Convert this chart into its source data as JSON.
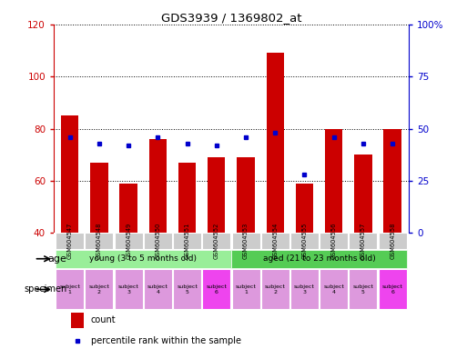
{
  "title": "GDS3939 / 1369802_at",
  "samples": [
    "GSM604547",
    "GSM604548",
    "GSM604549",
    "GSM604550",
    "GSM604551",
    "GSM604552",
    "GSM604553",
    "GSM604554",
    "GSM604555",
    "GSM604556",
    "GSM604557",
    "GSM604558"
  ],
  "count_values": [
    85,
    67,
    59,
    76,
    67,
    69,
    69,
    109,
    59,
    80,
    70,
    80
  ],
  "percentile_values": [
    46,
    43,
    42,
    46,
    43,
    42,
    46,
    48,
    28,
    46,
    43,
    43
  ],
  "ylim_left": [
    40,
    120
  ],
  "ylim_right": [
    0,
    100
  ],
  "yticks_left": [
    40,
    60,
    80,
    100,
    120
  ],
  "yticks_right": [
    0,
    25,
    50,
    75,
    100
  ],
  "ytick_labels_right": [
    "0",
    "25",
    "50",
    "75",
    "100%"
  ],
  "bar_color": "#cc0000",
  "percentile_color": "#0000cc",
  "age_groups": [
    {
      "label": "young (3 to 5 months old)",
      "start": 0,
      "end": 6,
      "color": "#99ee99"
    },
    {
      "label": "aged (21 to 23 months old)",
      "start": 6,
      "end": 12,
      "color": "#55cc55"
    }
  ],
  "specimen_colors": [
    "#dd99dd",
    "#dd99dd",
    "#dd99dd",
    "#dd99dd",
    "#dd99dd",
    "#ee44ee",
    "#dd99dd",
    "#dd99dd",
    "#dd99dd",
    "#dd99dd",
    "#dd99dd",
    "#ee44ee"
  ],
  "specimen_labels": [
    "subject\n1",
    "subject\n2",
    "subject\n3",
    "subject\n4",
    "subject\n5",
    "subject\n6",
    "subject\n1",
    "subject\n2",
    "subject\n3",
    "subject\n4",
    "subject\n5",
    "subject\n6"
  ],
  "left_axis_color": "#cc0000",
  "right_axis_color": "#0000cc",
  "grid_color": "#000000",
  "background_color": "#ffffff",
  "tick_label_bg": "#cccccc"
}
